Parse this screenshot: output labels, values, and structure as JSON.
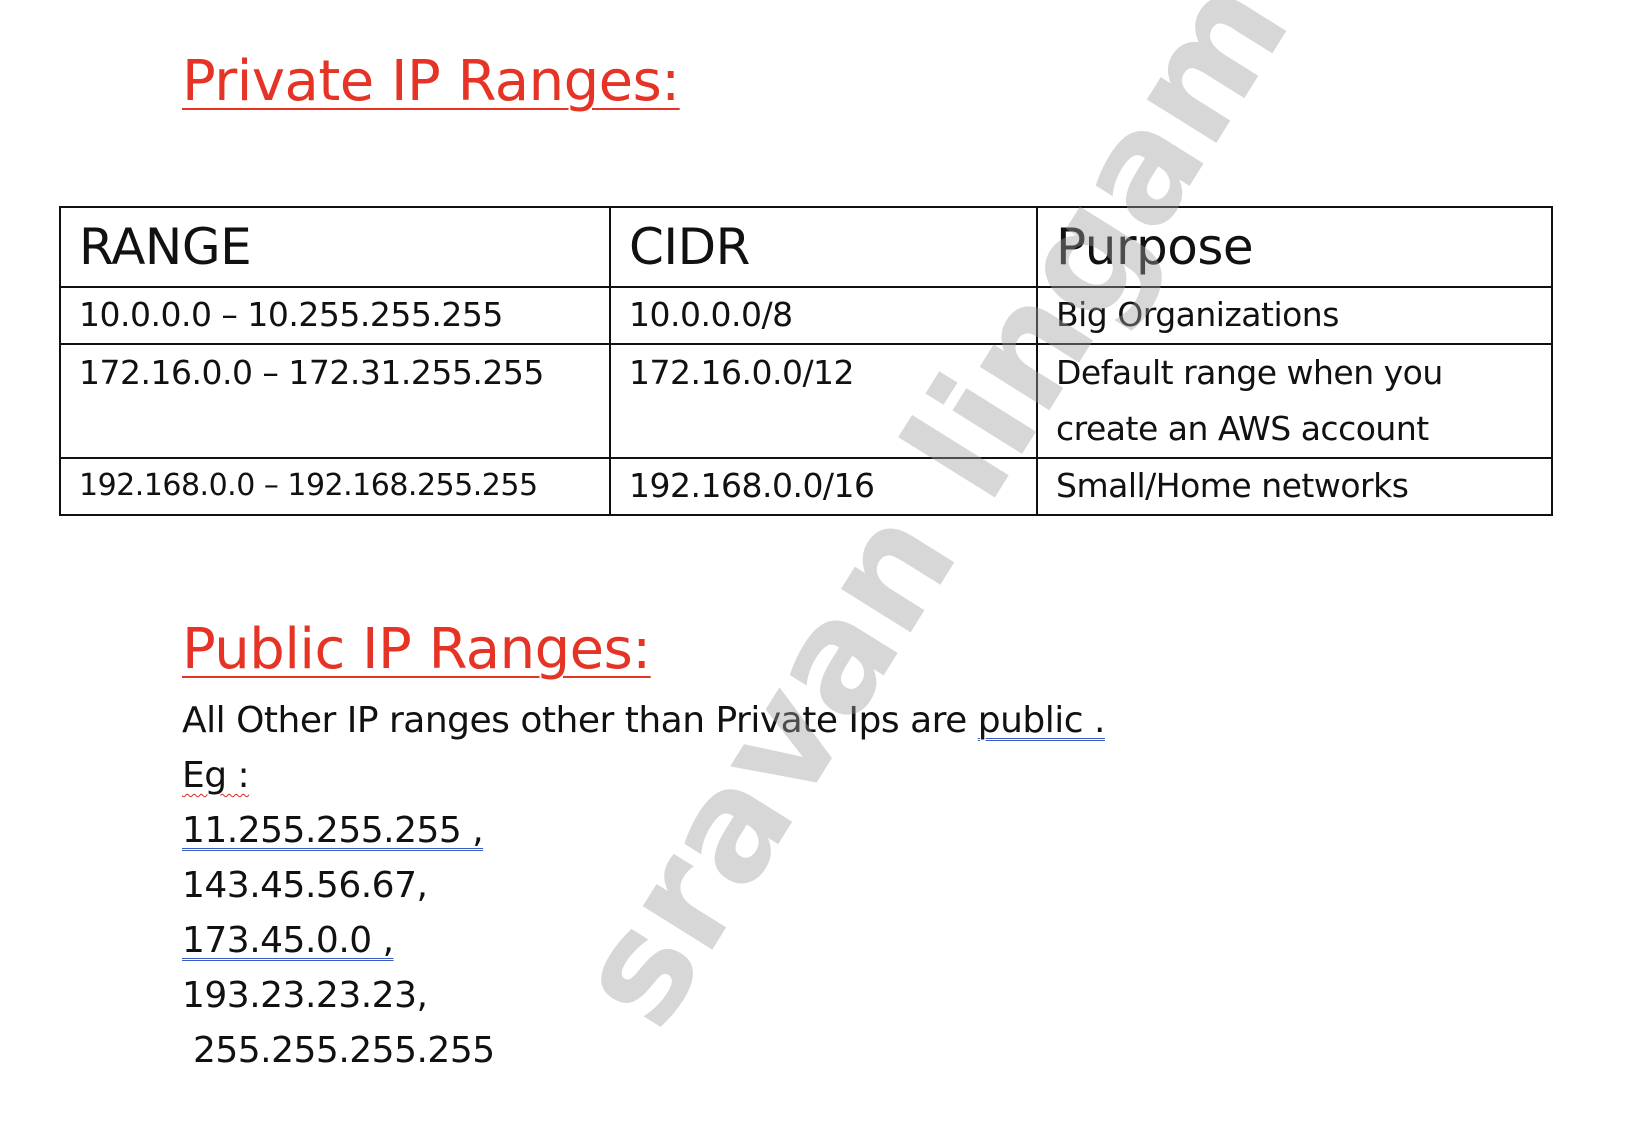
{
  "colors": {
    "heading": "#e53325",
    "text": "#111111",
    "border": "#111111",
    "watermark": "#a0a0a0",
    "spell_underline_blue": "#3a5bbf",
    "spell_underline_red": "#d62a1f"
  },
  "private_section": {
    "heading": "Private IP Ranges:",
    "table": {
      "headers": [
        "RANGE",
        "CIDR",
        "Purpose"
      ],
      "rows": [
        [
          "10.0.0.0 – 10.255.255.255",
          "10.0.0.0/8",
          "Big Organizations"
        ],
        [
          "172.16.0.0 – 172.31.255.255",
          "172.16.0.0/12",
          "Default range when you create an AWS account"
        ],
        [
          "192.168.0.0 – 192.168.255.255",
          "192.168.0.0/16",
          "Small/Home networks"
        ]
      ]
    }
  },
  "public_section": {
    "heading": "Public IP Ranges:",
    "description_prefix": "All Other IP ranges other than Private Ips are ",
    "description_link": "public .",
    "eg_label": "Eg :",
    "examples": [
      "11.255.255.255 ,",
      "143.45.56.67,",
      "173.45.0.0 ,",
      "193.23.23.23,",
      " 255.255.255.255"
    ]
  },
  "watermark": "sravan lingam"
}
